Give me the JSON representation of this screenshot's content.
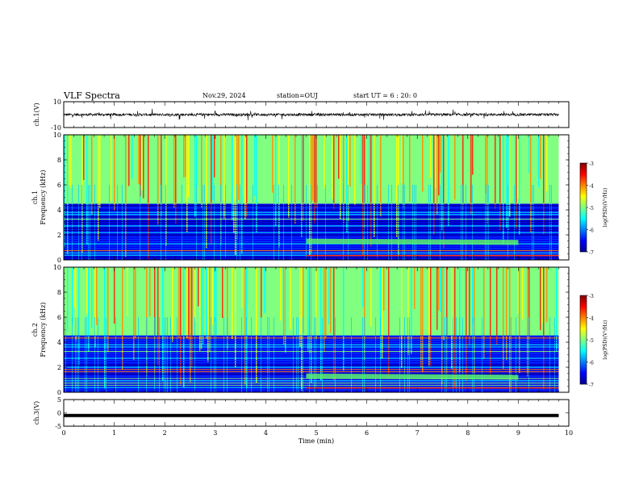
{
  "header": {
    "title": "VLF Spectra",
    "date": "Nov.29, 2024",
    "station": "station=OUJ",
    "start_ut": "start UT =  6 : 20: 0"
  },
  "chart_data": [
    {
      "type": "line",
      "ylabel": "ch.1(V)",
      "ylim": [
        -10,
        10
      ],
      "y_ticks": [
        "10",
        "-10"
      ],
      "xlim": [
        0,
        10
      ],
      "series": [
        {
          "color": "#000000",
          "baseline": 0,
          "amplitude_typical": 2
        }
      ]
    },
    {
      "type": "heatmap",
      "ylabel_channel": "ch.1",
      "ylabel": "Frequency (kHz)",
      "ylim": [
        0,
        10
      ],
      "y_ticks": [
        "0",
        "2",
        "4",
        "6",
        "8",
        "10"
      ],
      "xlim": [
        0,
        10
      ],
      "data_end_x": 9.8,
      "colorbar": {
        "label": "log(PSD)(V²/Hz)",
        "range": [
          -7,
          -3
        ],
        "ticks": [
          "-3",
          "-4",
          "-5",
          "-6",
          "-7"
        ]
      }
    },
    {
      "type": "heatmap",
      "ylabel_channel": "ch.2",
      "ylabel": "Frequency (kHz)",
      "ylim": [
        0,
        10
      ],
      "y_ticks": [
        "0",
        "2",
        "4",
        "6",
        "8",
        "10"
      ],
      "xlim": [
        0,
        10
      ],
      "data_end_x": 9.8,
      "colorbar": {
        "label": "log(PSD)(V²/Hz)",
        "range": [
          -7,
          -3
        ],
        "ticks": [
          "-3",
          "-4",
          "-5",
          "-6",
          "-7"
        ]
      }
    },
    {
      "type": "line",
      "ylabel": "ch.3(V)",
      "ylim": [
        -5,
        5
      ],
      "y_ticks": [
        "5",
        "0",
        "-5"
      ],
      "xlim": [
        0,
        10
      ],
      "x_ticks": [
        "0",
        "1",
        "2",
        "3",
        "4",
        "5",
        "6",
        "7",
        "8",
        "9",
        "10"
      ],
      "xlabel": "Time (min)",
      "series": [
        {
          "color": "#000000",
          "value": -1
        }
      ]
    }
  ],
  "colors": {
    "jet": [
      "#00008f",
      "#0000ff",
      "#0080ff",
      "#00ffff",
      "#80ff80",
      "#ffff00",
      "#ff8000",
      "#ff0000",
      "#800000"
    ]
  }
}
